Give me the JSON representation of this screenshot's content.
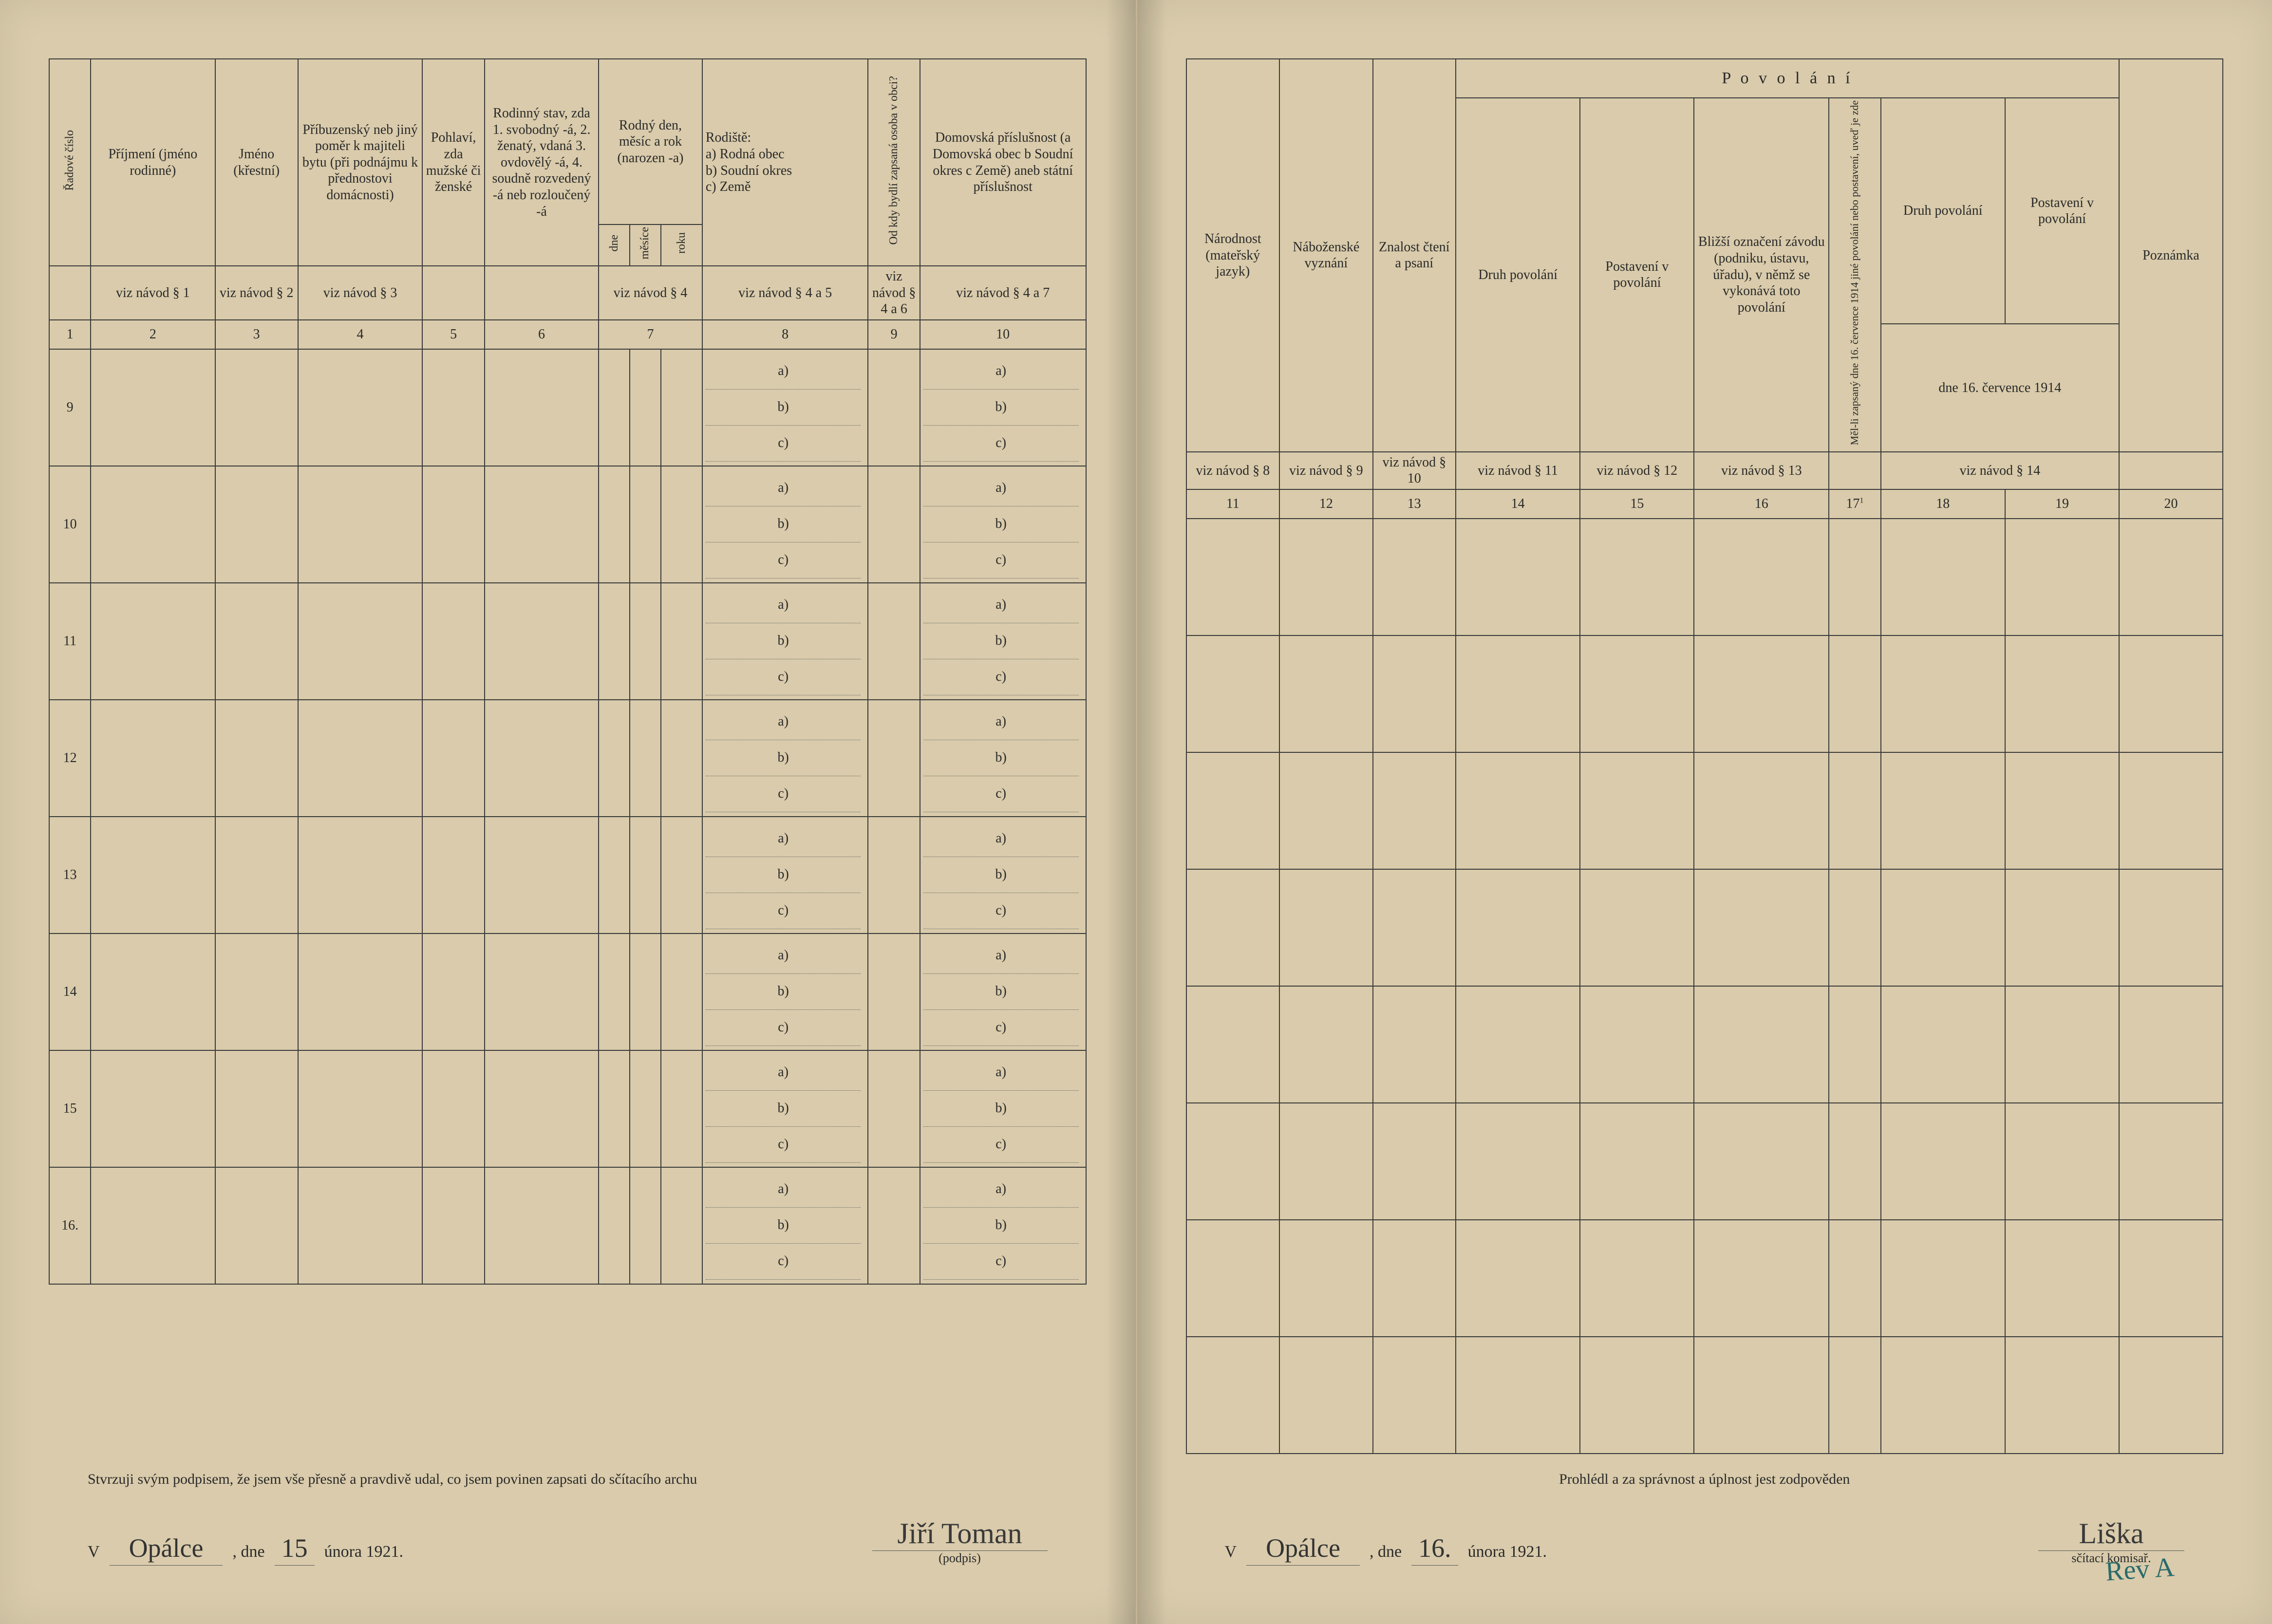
{
  "left": {
    "columns": {
      "c1": "Řadové číslo",
      "c2": "Příjmení\n(jméno rodinné)",
      "c3": "Jméno\n(křestní)",
      "c4": "Příbuzenský neb jiný poměr k majiteli bytu (při podnájmu k přednostovi domácnosti)",
      "c5": "Pohlaví, zda mužské či ženské",
      "c6": "Rodinný stav, zda 1. svobodný -á, 2. ženatý, vdaná 3. ovdovělý -á, 4. soudně rozvedený -á neb rozloučený -á",
      "c7": "Rodný den, měsíc a rok (narozen -a)",
      "c7a": "dne",
      "c7b": "měsíce",
      "c7c": "roku",
      "c8": "Rodiště:\na) Rodná obec\nb) Soudní okres\nc) Země",
      "c9": "Od kdy bydlí zapsaná osoba v obci?",
      "c10": "Domovská příslušnost (a Domovská obec b Soudní okres c Země) aneb státní příslušnost"
    },
    "refs": {
      "r2": "viz návod § 1",
      "r3": "viz návod § 2",
      "r4": "viz návod § 3",
      "r7": "viz návod § 4",
      "r8": "viz návod § 4 a 5",
      "r9": "viz návod § 4 a 6",
      "r10": "viz návod § 4 a 7"
    },
    "col_nums": [
      "1",
      "2",
      "3",
      "4",
      "5",
      "6",
      "7",
      "8",
      "9",
      "10"
    ],
    "row_nums": [
      "9",
      "10",
      "11",
      "12",
      "13",
      "14",
      "15",
      "16."
    ],
    "abc": {
      "a": "a)",
      "b": "b)",
      "c": "c)"
    },
    "footer": {
      "declaration": "Stvrzuji svým podpisem, že jsem vše přesně a pravdivě udal, co jsem povinen zapsati do sčítacího archu",
      "v": "V",
      "place": "Opálce",
      "dne": ", dne",
      "day": "15",
      "month_year": "února 1921.",
      "signature": "Jiří Toman",
      "sig_label": "(podpis)"
    }
  },
  "right": {
    "columns": {
      "c11": "Národnost (mateřský jazyk)",
      "c12": "Náboženské vyznání",
      "c13": "Znalost čtení a psaní",
      "povolani": "P o v o l á n í",
      "c14": "Druh povolání",
      "c15": "Postavení v povolání",
      "c16": "Bližší označení závodu (podniku, ústavu, úřadu), v němž se vykonává toto povolání",
      "c17": "Měl-li zapsaný dne 16. července 1914 jiné povolání nebo postavení, uveď je zde",
      "c18": "Druh povolání",
      "c19": "Postavení v povolání",
      "c20": "Poznámka",
      "date_line": "dne 16. července 1914"
    },
    "refs": {
      "r11": "viz návod § 8",
      "r12": "viz návod § 9",
      "r13": "viz návod § 10",
      "r14": "viz návod § 11",
      "r15": "viz návod § 12",
      "r16": "viz návod § 13",
      "r18": "viz návod § 14"
    },
    "col_nums": [
      "11",
      "12",
      "13",
      "14",
      "15",
      "16",
      "17",
      "18",
      "19",
      "20"
    ],
    "col17_sup": "1",
    "footer": {
      "declaration": "Prohlédl a za správnost a úplnost jest zodpověden",
      "v": "V",
      "place": "Opálce",
      "dne": ", dne",
      "day": "16.",
      "month_year": "února 1921.",
      "signature": "Liška",
      "sig_label": "sčítací komisař.",
      "stamp": "Rev A"
    }
  },
  "style": {
    "paper_color": "#d9cbab",
    "ink_color": "#2a2a2a",
    "border_color": "#3a3a3a",
    "handwriting_color": "#333333",
    "stamp_color": "#2a6b6b"
  }
}
